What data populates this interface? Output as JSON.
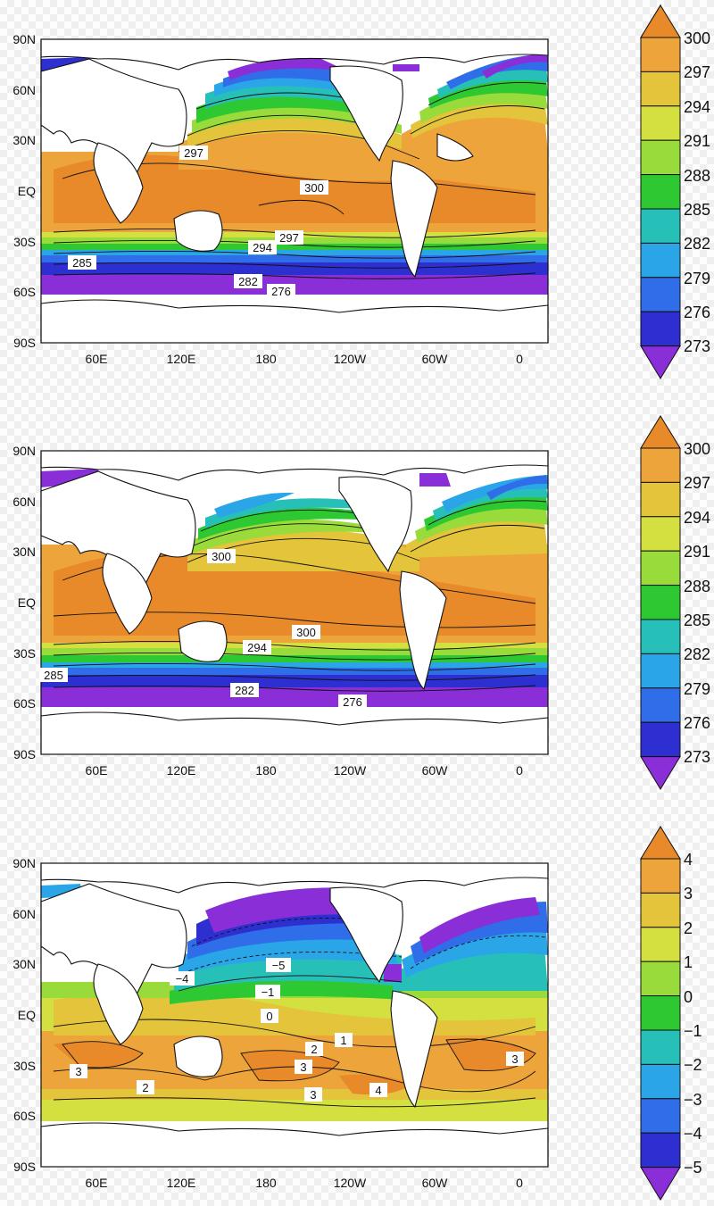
{
  "panels": [
    {
      "id": "mean-sst-top",
      "lat_labels": [
        "90N",
        "60N",
        "30N",
        "EQ",
        "30S",
        "60S",
        "90S"
      ],
      "lon_labels": [
        "60E",
        "120E",
        "180",
        "120W",
        "60W",
        "0"
      ],
      "contour_labels": [
        "297",
        "300",
        "297",
        "294",
        "285",
        "282",
        "276"
      ],
      "colorbar": {
        "levels": [
          "300",
          "297",
          "294",
          "291",
          "288",
          "285",
          "282",
          "279",
          "276",
          "273"
        ],
        "colors": [
          "#e8892a",
          "#eda43a",
          "#e3c43a",
          "#d4e040",
          "#9adb3c",
          "#2ec832",
          "#27c0b8",
          "#2aa6e8",
          "#2f6ee8",
          "#2d2fd0",
          "#8a2ed8"
        ]
      }
    },
    {
      "id": "mean-sst-middle",
      "lat_labels": [
        "90N",
        "60N",
        "30N",
        "EQ",
        "30S",
        "60S",
        "90S"
      ],
      "lon_labels": [
        "60E",
        "120E",
        "180",
        "120W",
        "60W",
        "0"
      ],
      "contour_labels": [
        "300",
        "300",
        "294",
        "285",
        "282",
        "276"
      ],
      "colorbar": {
        "levels": [
          "300",
          "297",
          "294",
          "291",
          "288",
          "285",
          "282",
          "279",
          "276",
          "273"
        ],
        "colors": [
          "#e8892a",
          "#eda43a",
          "#e3c43a",
          "#d4e040",
          "#9adb3c",
          "#2ec832",
          "#27c0b8",
          "#2aa6e8",
          "#2f6ee8",
          "#2d2fd0",
          "#8a2ed8"
        ]
      }
    },
    {
      "id": "sst-difference-bottom",
      "lat_labels": [
        "90N",
        "60N",
        "30N",
        "EQ",
        "30S",
        "60S",
        "90S"
      ],
      "lon_labels": [
        "60E",
        "120E",
        "180",
        "120W",
        "60W",
        "0"
      ],
      "contour_labels": [
        "−4",
        "−5",
        "−1",
        "0",
        "1",
        "2",
        "3",
        "3",
        "2",
        "3",
        "4",
        "3"
      ],
      "colorbar": {
        "levels": [
          "4",
          "3",
          "2",
          "1",
          "0",
          "−1",
          "−2",
          "−3",
          "−4",
          "−5"
        ],
        "colors": [
          "#e8892a",
          "#eda43a",
          "#e3c43a",
          "#d4e040",
          "#9adb3c",
          "#2ec832",
          "#27c0b8",
          "#2aa6e8",
          "#2f6ee8",
          "#2d2fd0",
          "#8a2ed8"
        ]
      }
    }
  ]
}
